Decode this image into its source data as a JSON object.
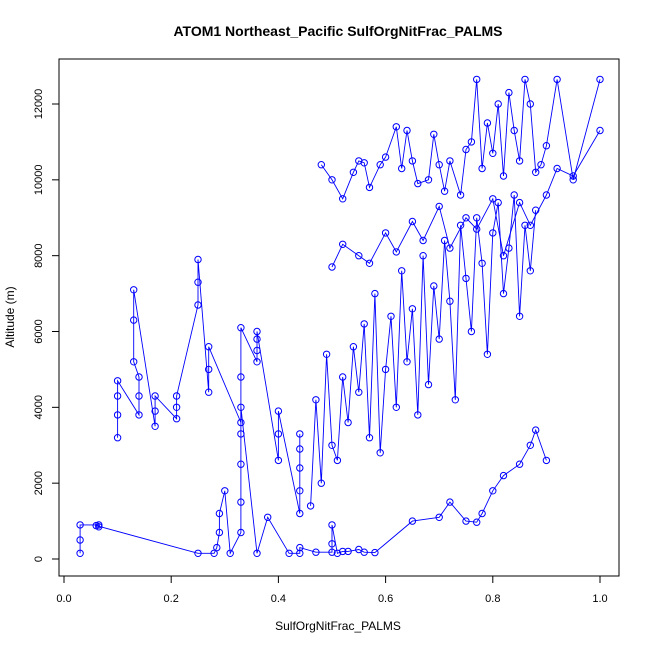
{
  "chart_data": {
    "type": "scatter",
    "title": "ATOM1 Northeast_Pacific SulfOrgNitFrac_PALMS",
    "xlabel": "SulfOrgNitFrac_PALMS",
    "ylabel": "Altitude (m)",
    "xlim": [
      0,
      1
    ],
    "ylim": [
      0,
      12500
    ],
    "xticks": [
      0.0,
      0.2,
      0.4,
      0.6,
      0.8,
      1.0
    ],
    "xtick_labels": [
      "0.0",
      "0.2",
      "0.4",
      "0.6",
      "0.8",
      "1.0"
    ],
    "yticks": [
      0,
      2000,
      4000,
      6000,
      8000,
      10000,
      12000
    ],
    "ytick_labels": [
      "0",
      "2000",
      "4000",
      "6000",
      "8000",
      "10000",
      "12000"
    ],
    "grid": false,
    "legend": "none",
    "markers": "open circles joined by lines",
    "color": "#0000ff",
    "series": [
      {
        "x": [
          0.03,
          0.03,
          0.03,
          0.065,
          0.065,
          0.06,
          0.25,
          0.28,
          0.285,
          0.29,
          0.29,
          0.3,
          0.31,
          0.33,
          0.33,
          0.33,
          0.33,
          0.33,
          0.36,
          0.38,
          0.42,
          0.44,
          0.44,
          0.47,
          0.5,
          0.5,
          0.5,
          0.51,
          0.52,
          0.53,
          0.55,
          0.56,
          0.58,
          0.65,
          0.7,
          0.72,
          0.75,
          0.77,
          0.78,
          0.8,
          0.82,
          0.85,
          0.87,
          0.88,
          0.9
        ],
        "y": [
          150,
          500,
          900,
          900,
          850,
          880,
          150,
          150,
          300,
          700,
          1200,
          1800,
          150,
          700,
          1500,
          2500,
          3300,
          4000,
          150,
          1100,
          150,
          150,
          300,
          180,
          180,
          400,
          900,
          150,
          200,
          200,
          250,
          180,
          170,
          1000,
          1100,
          1500,
          1000,
          970,
          1200,
          1800,
          2200,
          2500,
          3000,
          3400,
          2600
        ]
      },
      {
        "x": [
          0.1,
          0.1,
          0.1,
          0.1,
          0.14,
          0.14,
          0.14,
          0.13,
          0.13,
          0.13,
          0.17,
          0.17,
          0.17,
          0.21,
          0.21,
          0.21,
          0.25,
          0.25,
          0.25,
          0.27,
          0.27,
          0.27,
          0.33,
          0.33,
          0.33,
          0.36,
          0.36,
          0.36,
          0.36,
          0.4,
          0.4,
          0.4,
          0.44,
          0.44,
          0.44,
          0.44,
          0.44
        ],
        "y": [
          3200,
          3800,
          4300,
          4700,
          3800,
          4300,
          4800,
          5200,
          6300,
          7100,
          3500,
          3900,
          4300,
          3700,
          4000,
          4300,
          6700,
          7300,
          7900,
          4400,
          5000,
          5600,
          3600,
          4800,
          6100,
          5200,
          5500,
          5800,
          6000,
          2600,
          3300,
          3900,
          1200,
          1800,
          2400,
          2900,
          3300
        ]
      },
      {
        "x": [
          0.46,
          0.47,
          0.48,
          0.49,
          0.5,
          0.51,
          0.52,
          0.53,
          0.54,
          0.55,
          0.56,
          0.57,
          0.58,
          0.59,
          0.6,
          0.61,
          0.62,
          0.63,
          0.64,
          0.65,
          0.66,
          0.67,
          0.68,
          0.69,
          0.7,
          0.71,
          0.72,
          0.73,
          0.74,
          0.75,
          0.76,
          0.77,
          0.78,
          0.79,
          0.8,
          0.81,
          0.82,
          0.83,
          0.84,
          0.85,
          0.86,
          0.87,
          0.88
        ],
        "y": [
          1400,
          4200,
          2000,
          5400,
          3000,
          2600,
          4800,
          3600,
          5600,
          4400,
          6200,
          3200,
          7000,
          2800,
          5000,
          6400,
          4000,
          7600,
          5200,
          6600,
          3800,
          8000,
          4600,
          7200,
          5800,
          8400,
          6800,
          4200,
          8800,
          7400,
          6000,
          9000,
          7800,
          5400,
          8600,
          9400,
          7000,
          8200,
          9600,
          6400,
          8800,
          7600,
          9200
        ]
      },
      {
        "x": [
          0.48,
          0.5,
          0.52,
          0.54,
          0.55,
          0.56,
          0.57,
          0.59,
          0.6,
          0.62,
          0.63,
          0.64,
          0.65,
          0.66,
          0.68,
          0.69,
          0.7,
          0.71,
          0.72,
          0.74,
          0.75,
          0.76,
          0.77,
          0.78,
          0.79,
          0.8,
          0.81,
          0.82,
          0.83,
          0.84,
          0.85,
          0.86,
          0.87,
          0.88,
          0.89,
          0.9,
          0.92,
          0.95,
          1.0
        ],
        "y": [
          10400,
          10000,
          9500,
          10200,
          10500,
          10450,
          9800,
          10400,
          10600,
          11400,
          10300,
          11300,
          10500,
          9900,
          10000,
          11200,
          10400,
          9700,
          10500,
          9600,
          10800,
          11000,
          12650,
          10300,
          11500,
          10700,
          12000,
          10100,
          12300,
          11300,
          10500,
          12650,
          12000,
          10200,
          10400,
          10900,
          12650,
          10000,
          12650
        ]
      },
      {
        "x": [
          0.5,
          0.52,
          0.55,
          0.57,
          0.6,
          0.62,
          0.65,
          0.67,
          0.7,
          0.72,
          0.75,
          0.77,
          0.8,
          0.82,
          0.85,
          0.87,
          0.9,
          0.92,
          0.95,
          1.0
        ],
        "y": [
          7700,
          8300,
          8000,
          7800,
          8600,
          8100,
          8900,
          8400,
          9300,
          8200,
          9000,
          8700,
          9500,
          8000,
          9400,
          8800,
          9600,
          10300,
          10100,
          11300
        ]
      }
    ]
  }
}
